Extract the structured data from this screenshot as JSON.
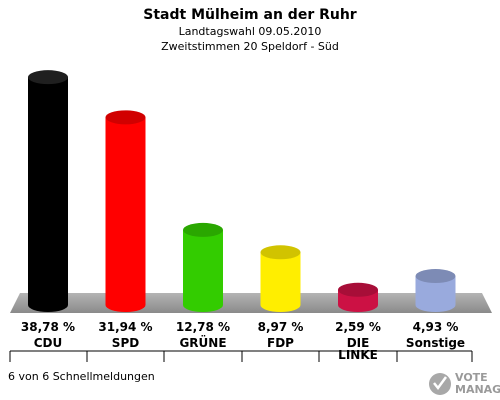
{
  "header": {
    "title": "Stadt Mülheim an der Ruhr",
    "subtitle1": "Landtagswahl 09.05.2010",
    "subtitle2": "Zweitstimmen 20 Speldorf - Süd"
  },
  "footer": {
    "note": "6 von 6 Schnellmeldungen",
    "logo_line1": "VOTE",
    "logo_line2": "MANAGER"
  },
  "chart_data": {
    "type": "bar",
    "categories": [
      "CDU",
      "SPD",
      "GRÜNE",
      "FDP",
      "DIE LINKE",
      "Sonstige"
    ],
    "category_lines": [
      [
        "CDU"
      ],
      [
        "SPD"
      ],
      [
        "GRÜNE"
      ],
      [
        "FDP"
      ],
      [
        "DIE",
        "LINKE"
      ],
      [
        "Sonstige"
      ]
    ],
    "values": [
      38.78,
      31.94,
      12.78,
      8.97,
      2.59,
      4.93
    ],
    "value_labels": [
      "38,78 %",
      "31,94 %",
      "12,78 %",
      "8,97 %",
      "2,59 %",
      "4,93 %"
    ],
    "colors": [
      "#000000",
      "#ff0000",
      "#33cc00",
      "#ffee00",
      "#cc1144",
      "#99aadd"
    ],
    "ylim": [
      0,
      40
    ],
    "grid": false,
    "legend": "none"
  }
}
